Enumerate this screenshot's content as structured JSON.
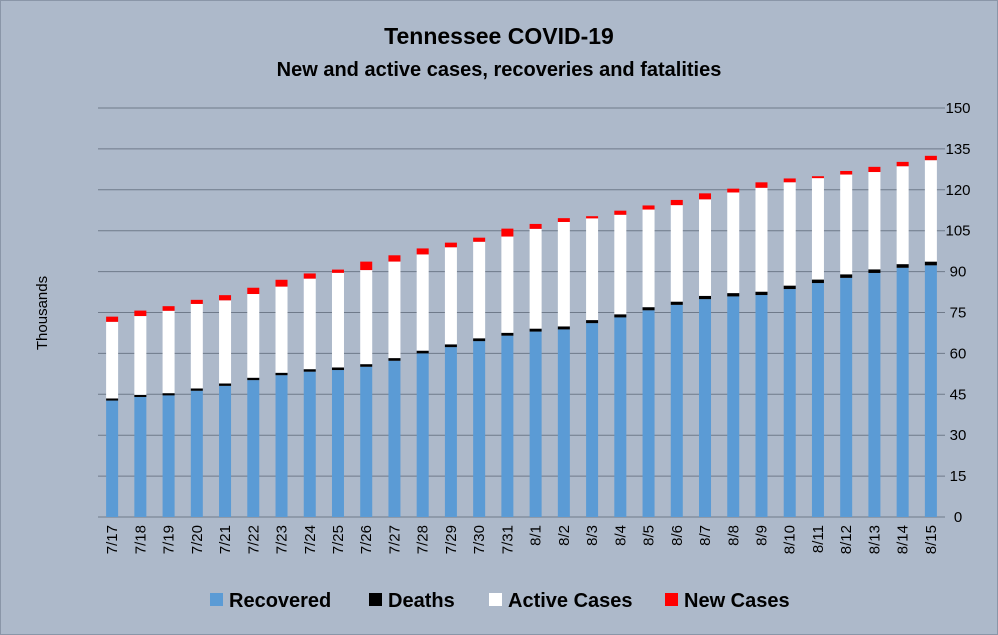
{
  "chart_data": {
    "type": "bar",
    "stacked": true,
    "title": "Tennessee COVID-19",
    "subtitle": "New and active cases, recoveries and fatalities",
    "ylabel": "Thousands",
    "xlabel": "",
    "ylim": [
      0,
      150
    ],
    "yticks": [
      0,
      15,
      30,
      45,
      60,
      75,
      90,
      105,
      120,
      135,
      150
    ],
    "y_axis_side": "right",
    "grid": true,
    "legend_position": "bottom",
    "categories": [
      "7/17",
      "7/18",
      "7/19",
      "7/20",
      "7/21",
      "7/22",
      "7/23",
      "7/24",
      "7/25",
      "7/26",
      "7/27",
      "7/28",
      "7/29",
      "7/30",
      "7/31",
      "8/1",
      "8/2",
      "8/3",
      "8/4",
      "8/5",
      "8/6",
      "8/7",
      "8/8",
      "8/9",
      "8/10",
      "8/11",
      "8/12",
      "8/13",
      "8/14",
      "8/15"
    ],
    "series": [
      {
        "name": "Recovered",
        "color": "#5b9bd5",
        "values": [
          42.7,
          44.0,
          44.6,
          46.3,
          48.1,
          50.2,
          52.0,
          53.3,
          53.9,
          55.1,
          57.3,
          60.0,
          62.3,
          64.5,
          66.5,
          68.0,
          68.8,
          71.1,
          73.2,
          75.8,
          77.8,
          79.9,
          80.9,
          81.4,
          83.6,
          85.8,
          87.7,
          89.5,
          91.4,
          92.3
        ]
      },
      {
        "name": "Deaths",
        "color": "#000000",
        "values": [
          0.78,
          0.8,
          0.82,
          0.84,
          0.86,
          0.88,
          0.9,
          0.92,
          0.94,
          0.96,
          0.98,
          1.0,
          1.02,
          1.04,
          1.06,
          1.08,
          1.1,
          1.12,
          1.14,
          1.16,
          1.18,
          1.2,
          1.22,
          1.24,
          1.26,
          1.28,
          1.3,
          1.32,
          1.34,
          1.36
        ]
      },
      {
        "name": "Active Cases",
        "color": "#ffffff",
        "values": [
          28.1,
          28.9,
          30.2,
          31.0,
          30.5,
          30.7,
          31.6,
          33.2,
          34.7,
          34.5,
          35.4,
          35.3,
          35.6,
          35.4,
          35.3,
          36.6,
          38.3,
          37.3,
          36.5,
          35.8,
          35.4,
          35.4,
          36.9,
          38.1,
          37.9,
          37.2,
          36.6,
          35.7,
          35.9,
          37.2
        ]
      },
      {
        "name": "New Cases",
        "color": "#ff0000",
        "values": [
          1.9,
          2.0,
          1.7,
          1.5,
          1.9,
          2.3,
          2.5,
          1.9,
          1.2,
          3.1,
          2.3,
          2.2,
          1.7,
          1.5,
          2.9,
          1.8,
          1.4,
          0.8,
          1.5,
          1.5,
          1.9,
          2.2,
          1.4,
          2.0,
          1.4,
          0.7,
          1.3,
          1.9,
          1.6,
          1.6
        ]
      }
    ]
  }
}
